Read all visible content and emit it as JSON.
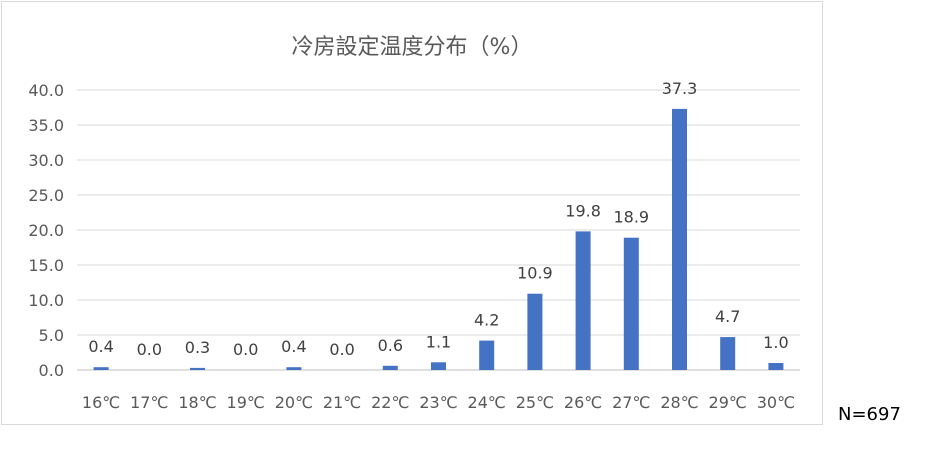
{
  "chart_data": {
    "type": "bar",
    "title": "冷房設定温度分布（%）",
    "categories": [
      "16℃",
      "17℃",
      "18℃",
      "19℃",
      "20℃",
      "21℃",
      "22℃",
      "23℃",
      "24℃",
      "25℃",
      "26℃",
      "27℃",
      "28℃",
      "29℃",
      "30℃"
    ],
    "values": [
      0.4,
      0.0,
      0.3,
      0.0,
      0.4,
      0.0,
      0.6,
      1.1,
      4.2,
      10.9,
      19.8,
      18.9,
      37.3,
      4.7,
      1.0
    ],
    "value_labels": [
      "0.4",
      "0.0",
      "0.3",
      "0.0",
      "0.4",
      "0.0",
      "0.6",
      "1.1",
      "4.2",
      "10.9",
      "19.8",
      "18.9",
      "37.3",
      "4.7",
      "1.0"
    ],
    "yticks": [
      "0.0",
      "5.0",
      "10.0",
      "15.0",
      "20.0",
      "25.0",
      "30.0",
      "35.0",
      "40.0"
    ],
    "ylim": [
      0,
      40
    ],
    "grid": true,
    "legend": "none",
    "bar_color": "#4472c4"
  },
  "note": "N=697"
}
